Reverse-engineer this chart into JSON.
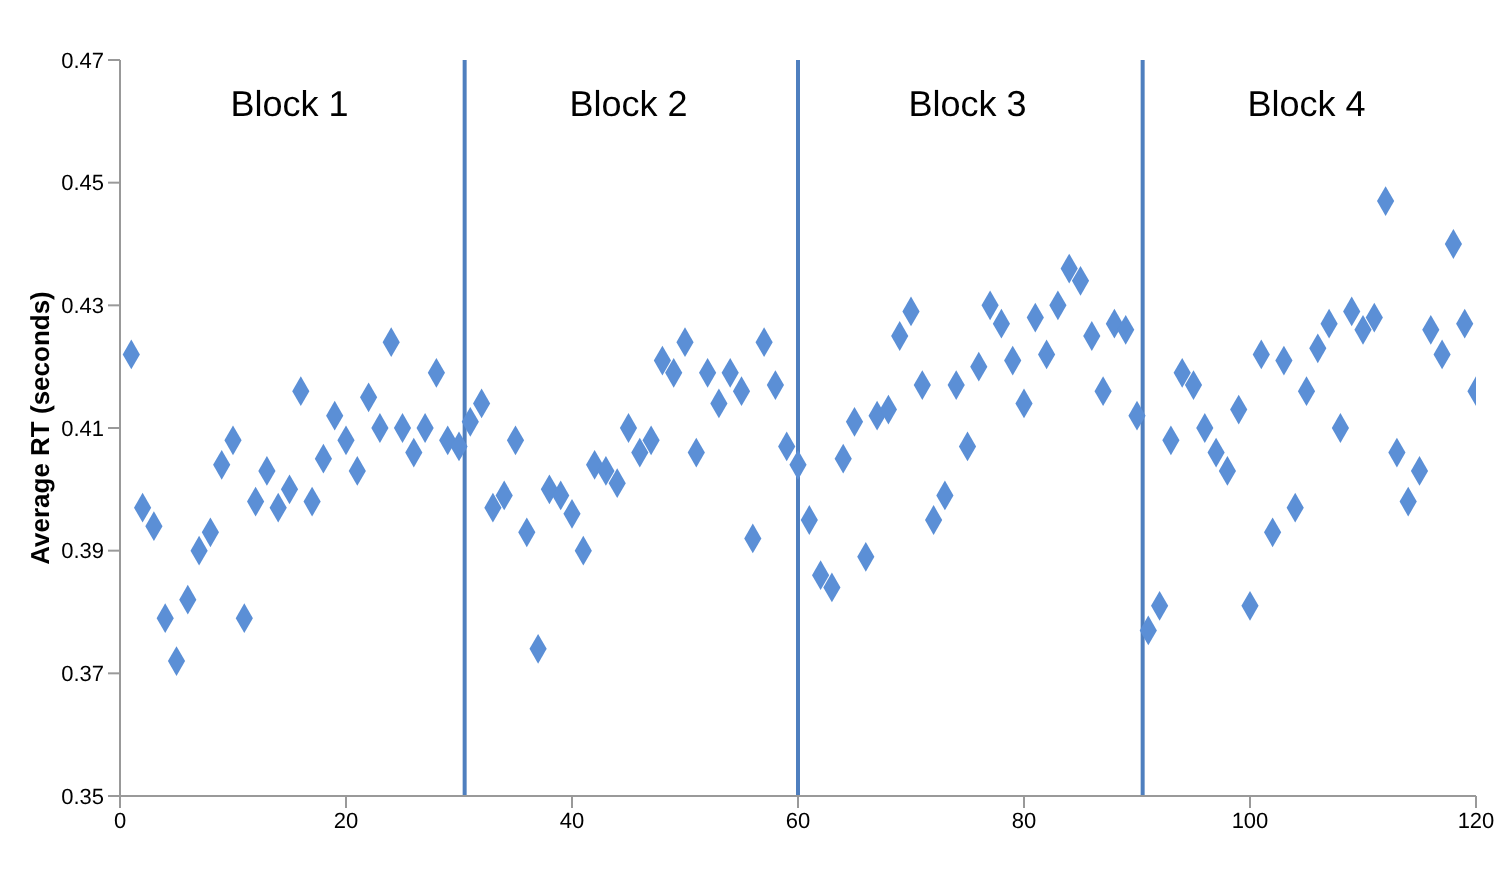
{
  "chart_data": {
    "type": "scatter",
    "ylabel": "Average RT (seconds)",
    "x": [
      1,
      2,
      3,
      4,
      5,
      6,
      7,
      8,
      9,
      10,
      11,
      12,
      13,
      14,
      15,
      16,
      17,
      18,
      19,
      20,
      21,
      22,
      23,
      24,
      25,
      26,
      27,
      28,
      29,
      30,
      31,
      32,
      33,
      34,
      35,
      36,
      37,
      38,
      39,
      40,
      41,
      42,
      43,
      44,
      45,
      46,
      47,
      48,
      49,
      50,
      51,
      52,
      53,
      54,
      55,
      56,
      57,
      58,
      59,
      60,
      61,
      62,
      63,
      64,
      65,
      66,
      67,
      68,
      69,
      70,
      71,
      72,
      73,
      74,
      75,
      76,
      77,
      78,
      79,
      80,
      81,
      82,
      83,
      84,
      85,
      86,
      87,
      88,
      89,
      90,
      91,
      92,
      93,
      94,
      95,
      96,
      97,
      98,
      99,
      100,
      101,
      102,
      103,
      104,
      105,
      106,
      107,
      108,
      109,
      110,
      111,
      112,
      113,
      114,
      115,
      116,
      117,
      118,
      119,
      120
    ],
    "series": [
      {
        "color": "#5b8fd6",
        "values": [
          0.422,
          0.397,
          0.394,
          0.379,
          0.372,
          0.382,
          0.39,
          0.393,
          0.404,
          0.408,
          0.379,
          0.398,
          0.403,
          0.397,
          0.4,
          0.416,
          0.398,
          0.405,
          0.412,
          0.408,
          0.403,
          0.415,
          0.41,
          0.424,
          0.41,
          0.406,
          0.41,
          0.419,
          0.408,
          0.407,
          0.411,
          0.414,
          0.397,
          0.399,
          0.408,
          0.393,
          0.374,
          0.4,
          0.399,
          0.396,
          0.39,
          0.404,
          0.403,
          0.401,
          0.41,
          0.406,
          0.408,
          0.421,
          0.419,
          0.424,
          0.406,
          0.419,
          0.414,
          0.419,
          0.416,
          0.392,
          0.424,
          0.417,
          0.407,
          0.404,
          0.395,
          0.386,
          0.384,
          0.405,
          0.411,
          0.389,
          0.412,
          0.413,
          0.425,
          0.429,
          0.417,
          0.395,
          0.399,
          0.417,
          0.407,
          0.42,
          0.43,
          0.427,
          0.421,
          0.414,
          0.428,
          0.422,
          0.43,
          0.436,
          0.434,
          0.425,
          0.416,
          0.427,
          0.426,
          0.412,
          0.377,
          0.381,
          0.408,
          0.419,
          0.417,
          0.41,
          0.406,
          0.403,
          0.413,
          0.381,
          0.422,
          0.393,
          0.421,
          0.397,
          0.416,
          0.423,
          0.427,
          0.41,
          0.429,
          0.426,
          0.428,
          0.447,
          0.406,
          0.398,
          0.403,
          0.426,
          0.422,
          0.44,
          0.427,
          0.416
        ]
      }
    ],
    "xlim": [
      0,
      120
    ],
    "xticks": [
      0,
      20,
      40,
      60,
      80,
      100,
      120
    ],
    "ylim": [
      0.35,
      0.47
    ],
    "yticks": [
      0.35,
      0.37,
      0.39,
      0.41,
      0.43,
      0.45,
      0.47
    ],
    "marker": "diamond",
    "grid": false,
    "legend": false,
    "ref_lines": [
      {
        "axis": "x",
        "value": 30.5,
        "color": "#4f7fbf"
      },
      {
        "axis": "x",
        "value": 60,
        "color": "#4f7fbf"
      },
      {
        "axis": "x",
        "value": 90.5,
        "color": "#4f7fbf"
      }
    ],
    "annotations": [
      "Block 1",
      "Block 2",
      "Block 3",
      "Block 4"
    ]
  }
}
